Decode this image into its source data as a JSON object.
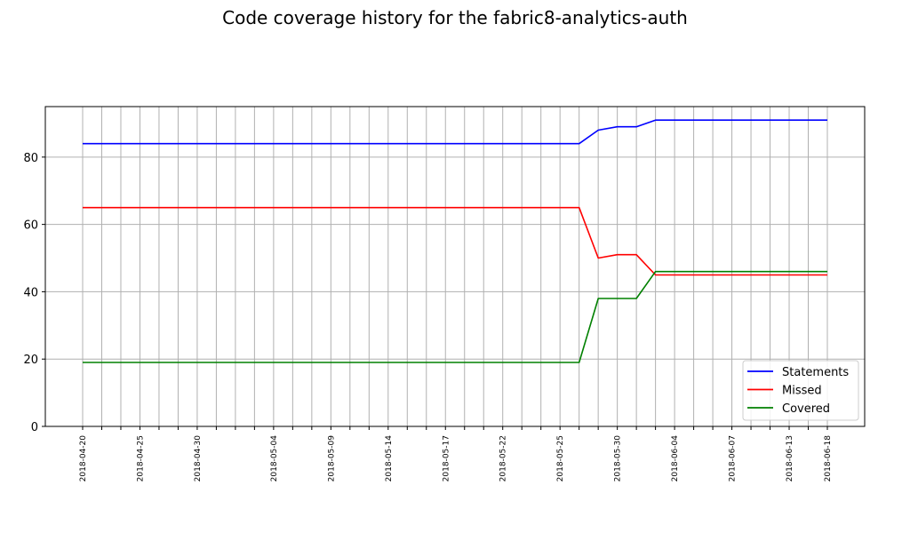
{
  "chart_data": {
    "type": "line",
    "title": "Code coverage history for the fabric8-analytics-auth",
    "xlabel": "",
    "ylabel": "",
    "ylim": [
      0,
      95
    ],
    "yticks": [
      0,
      20,
      40,
      60,
      80
    ],
    "grid": true,
    "legend_position": "lower-right",
    "x": [
      "2018-04-20",
      "2018-04-21",
      "2018-04-24",
      "2018-04-25",
      "2018-04-26",
      "2018-04-27",
      "2018-04-30",
      "2018-05-01",
      "2018-05-02",
      "2018-05-03",
      "2018-05-04",
      "2018-05-07",
      "2018-05-08",
      "2018-05-09",
      "2018-05-10",
      "2018-05-11",
      "2018-05-14",
      "2018-05-15",
      "2018-05-16",
      "2018-05-17",
      "2018-05-18",
      "2018-05-21",
      "2018-05-22",
      "2018-05-23",
      "2018-05-24",
      "2018-05-25",
      "2018-05-28",
      "2018-05-29",
      "2018-05-30",
      "2018-05-31",
      "2018-06-01",
      "2018-06-04",
      "2018-06-05",
      "2018-06-06",
      "2018-06-07",
      "2018-06-08",
      "2018-06-11",
      "2018-06-13",
      "2018-06-14",
      "2018-06-18"
    ],
    "x_tick_labels": [
      "2018-04-20",
      "",
      "",
      "2018-04-25",
      "",
      "",
      "2018-04-30",
      "",
      "",
      "",
      "2018-05-04",
      "",
      "",
      "2018-05-09",
      "",
      "",
      "2018-05-14",
      "",
      "",
      "2018-05-17",
      "",
      "",
      "2018-05-22",
      "",
      "",
      "2018-05-25",
      "",
      "",
      "2018-05-30",
      "",
      "",
      "2018-06-04",
      "",
      "",
      "2018-06-07",
      "",
      "",
      "2018-06-13",
      "",
      "2018-06-18"
    ],
    "series": [
      {
        "name": "Statements",
        "color": "#0000ff",
        "values": [
          84,
          84,
          84,
          84,
          84,
          84,
          84,
          84,
          84,
          84,
          84,
          84,
          84,
          84,
          84,
          84,
          84,
          84,
          84,
          84,
          84,
          84,
          84,
          84,
          84,
          84,
          84,
          88,
          89,
          89,
          91,
          91,
          91,
          91,
          91,
          91,
          91,
          91,
          91,
          91
        ]
      },
      {
        "name": "Missed",
        "color": "#ff0000",
        "values": [
          65,
          65,
          65,
          65,
          65,
          65,
          65,
          65,
          65,
          65,
          65,
          65,
          65,
          65,
          65,
          65,
          65,
          65,
          65,
          65,
          65,
          65,
          65,
          65,
          65,
          65,
          65,
          50,
          51,
          51,
          45,
          45,
          45,
          45,
          45,
          45,
          45,
          45,
          45,
          45
        ]
      },
      {
        "name": "Covered",
        "color": "#008000",
        "values": [
          19,
          19,
          19,
          19,
          19,
          19,
          19,
          19,
          19,
          19,
          19,
          19,
          19,
          19,
          19,
          19,
          19,
          19,
          19,
          19,
          19,
          19,
          19,
          19,
          19,
          19,
          19,
          38,
          38,
          38,
          46,
          46,
          46,
          46,
          46,
          46,
          46,
          46,
          46,
          46
        ]
      }
    ]
  }
}
